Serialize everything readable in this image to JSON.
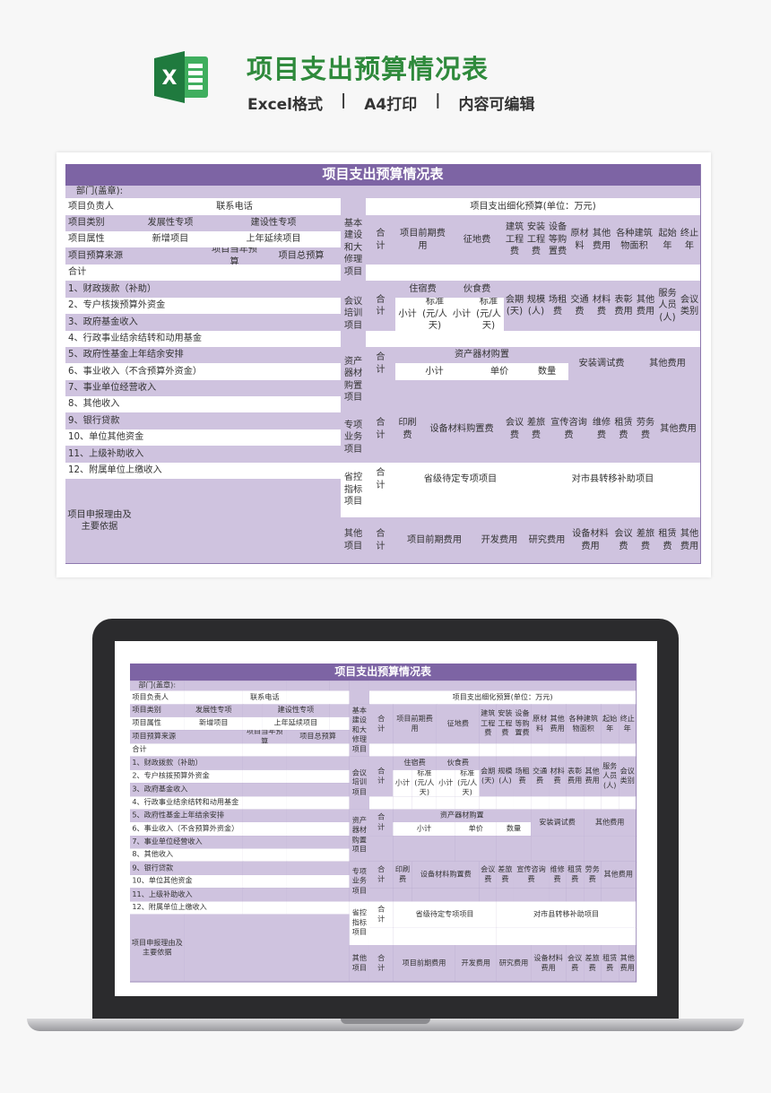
{
  "header": {
    "logo_icon": "excel-icon",
    "logo_letter": "X",
    "title": "项目支出预算情况表",
    "features": [
      "Excel格式",
      "A4打印",
      "内容可编辑"
    ],
    "separator": "|"
  },
  "colors": {
    "title_green": "#2f8a3c",
    "sheet_header": "#7d64a4",
    "sheet_fill": "#cfc3df",
    "excel_green": "#1f7a3e"
  },
  "sheet": {
    "title": "项目支出预算情况表",
    "dept_label": "部门(盖章):",
    "leader_label": "项目负责人",
    "phone_label": "联系电话",
    "type_label": "项目类别",
    "type_dev": "发展性专项",
    "type_build": "建设性专项",
    "attr_label": "项目属性",
    "attr_new": "新增项目",
    "attr_cont": "上年延续项目",
    "source_label": "项目预算来源",
    "cur_budget": "项目当年预算",
    "total_budget": "项目总预算",
    "total": "合计",
    "sources": [
      "1、财政拨款（补助）",
      "2、专户核拨预算外资金",
      "3、政府基金收入",
      "4、行政事业结余结转和动用基金",
      "5、政府性基金上年结余安排",
      "6、事业收入（不含预算外资金）",
      "7、事业单位经营收入",
      "8、其他收入",
      "9、银行贷款",
      "10、单位其他资金",
      "11、上级补助收入",
      "12、附属单位上缴收入"
    ],
    "reason_label": "项目申报理由及主要依据",
    "detail_title": "项目支出细化预算(单位：万元)"
  },
  "sections": {
    "basic": {
      "label": "基本建设和大修理项目",
      "total": "合计",
      "cols": [
        "项目前期费用",
        "征地费",
        "建筑工程费",
        "安装工程费",
        "设备等购置费",
        "原材料",
        "其他费用",
        "各种建筑物面积",
        "起始年",
        "终止年"
      ]
    },
    "meeting": {
      "label": "会议培训项目",
      "total": "合计",
      "lodging": "住宿费",
      "food": "伙食费",
      "subtotal": "小计",
      "lodging_std": "标准(元/人天)",
      "food_std": "标准(元/人天)",
      "cols": [
        "会期(天)",
        "规模(人)",
        "场租费",
        "交通费",
        "材料费",
        "表彰费用",
        "其他费用",
        "服务人员(人)",
        "会议类别"
      ]
    },
    "asset": {
      "label": "资产器材购置项目",
      "total": "合计",
      "purchase": "资产器材购置",
      "subtotal": "小计",
      "unit_price": "单价",
      "quantity": "数量",
      "install": "安装调试费",
      "other": "其他费用"
    },
    "special": {
      "label": "专项业务项目",
      "total": "合计",
      "cols": [
        "印刷费",
        "设备材料购置费",
        "会议费",
        "差旅费",
        "宣传咨询费",
        "维修费",
        "租赁费",
        "劳务费",
        "其他费用"
      ]
    },
    "province": {
      "label": "省控指标项目",
      "total": "合计",
      "pending": "省级待定专项项目",
      "transfer": "对市县转移补助项目"
    },
    "other": {
      "label": "其他项目",
      "total": "合计",
      "cols": [
        "项目前期费用",
        "开发费用",
        "研究费用",
        "设备材料费用",
        "会议费",
        "差旅费",
        "租赁费",
        "其他费用"
      ]
    }
  }
}
